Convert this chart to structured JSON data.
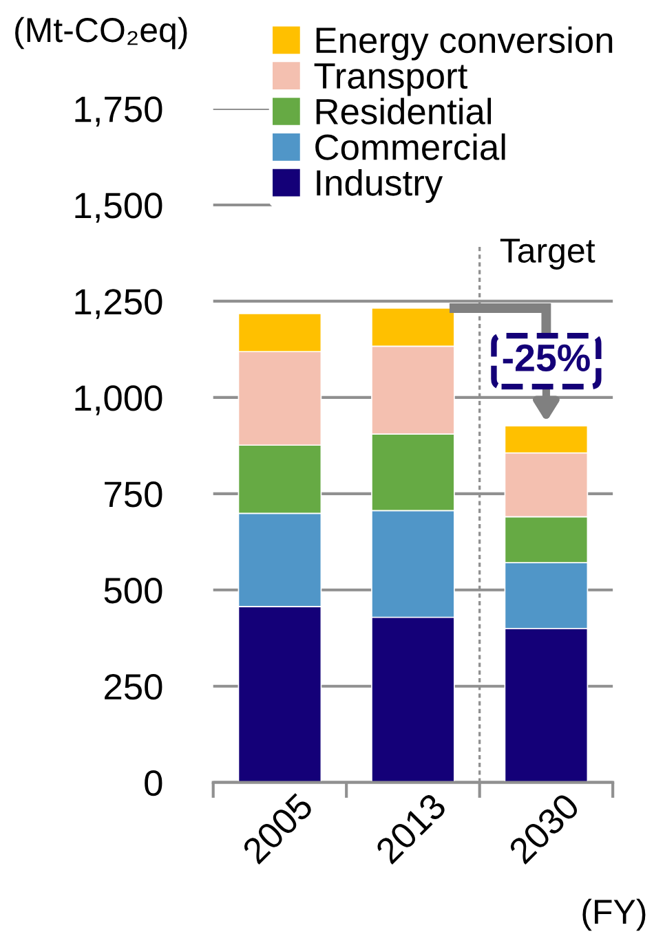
{
  "chart_data": {
    "type": "bar",
    "stacked": true,
    "ylabel": "(Mt-CO₂eq)",
    "xlabel": "(FY)",
    "categories": [
      "2005",
      "2013",
      "2030"
    ],
    "series": [
      {
        "name": "Industry",
        "color": "#140078",
        "values": [
          457,
          429,
          400
        ]
      },
      {
        "name": "Commercial",
        "color": "#5096c8",
        "values": [
          242,
          277,
          171
        ]
      },
      {
        "name": "Residential",
        "color": "#66aa44",
        "values": [
          177,
          199,
          119
        ]
      },
      {
        "name": "Transport",
        "color": "#f4c0b0",
        "values": [
          243,
          228,
          166
        ]
      },
      {
        "name": "Energy conversion",
        "color": "#ffc000",
        "values": [
          99,
          99,
          70
        ]
      }
    ],
    "ylim": [
      0,
      1750
    ],
    "yticks": [
      {
        "value": 0,
        "label": "0"
      },
      {
        "value": 250,
        "label": "250"
      },
      {
        "value": 500,
        "label": "500"
      },
      {
        "value": 750,
        "label": "750"
      },
      {
        "value": 1000,
        "label": "1,000"
      },
      {
        "value": 1250,
        "label": "1,250"
      },
      {
        "value": 1500,
        "label": "1,500"
      },
      {
        "value": 1750,
        "label": "1,750"
      }
    ],
    "grid": "y",
    "legend": "top",
    "annotations": [
      "Target",
      {
        "text": "-25%",
        "x": "2030",
        "y": 926
      }
    ]
  }
}
